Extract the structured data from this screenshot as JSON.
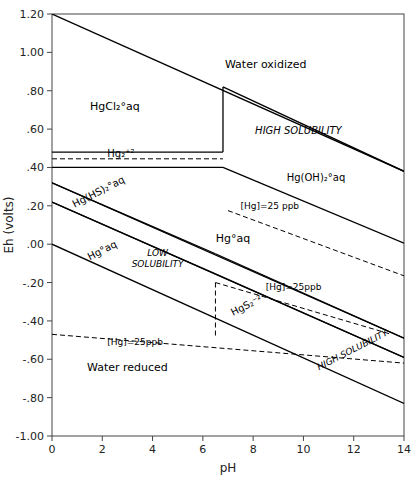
{
  "chart_data": {
    "type": "line",
    "xlabel": "pH",
    "ylabel": "Eh (volts)",
    "xlim": [
      0,
      14
    ],
    "ylim": [
      -1.0,
      1.2
    ],
    "xticks": [
      0,
      2,
      4,
      6,
      8,
      10,
      12,
      14
    ],
    "yticks": [
      {
        "value": -1.0,
        "label": "-1.00"
      },
      {
        "value": -0.8,
        "label": "-.80"
      },
      {
        "value": -0.6,
        "label": "-.60"
      },
      {
        "value": -0.4,
        "label": "-.40"
      },
      {
        "value": -0.2,
        "label": "-.20"
      },
      {
        "value": 0.0,
        "label": ".00"
      },
      {
        "value": 0.2,
        "label": ".20"
      },
      {
        "value": 0.4,
        "label": ".40"
      },
      {
        "value": 0.6,
        "label": ".60"
      },
      {
        "value": 0.8,
        "label": ".80"
      },
      {
        "value": 1.0,
        "label": "1.00"
      },
      {
        "value": 1.2,
        "label": "1.20"
      }
    ],
    "color": "#000000",
    "series": [
      {
        "x": [
          0,
          14
        ],
        "values": [
          1.2,
          0.38
        ],
        "line_style": "solid"
      },
      {
        "x": [
          0,
          14
        ],
        "values": [
          0.0,
          -0.83
        ],
        "line_style": "solid"
      },
      {
        "x": [
          0,
          6.8
        ],
        "values": [
          0.48,
          0.48
        ],
        "line_style": "solid"
      },
      {
        "x": [
          6.8,
          6.8
        ],
        "values": [
          0.48,
          0.82
        ],
        "line_style": "solid"
      },
      {
        "x": [
          6.8,
          14
        ],
        "values": [
          0.82,
          0.38
        ],
        "line_style": "solid"
      },
      {
        "x": [
          0,
          6.8
        ],
        "values": [
          0.445,
          0.445
        ],
        "line_style": "dashed"
      },
      {
        "x": [
          0,
          6.8
        ],
        "values": [
          0.4,
          0.4
        ],
        "line_style": "solid"
      },
      {
        "x": [
          6.8,
          14
        ],
        "values": [
          0.4,
          0.005
        ],
        "line_style": "solid"
      },
      {
        "x": [
          0,
          14
        ],
        "values": [
          0.32,
          -0.49
        ],
        "line_style": "solid"
      },
      {
        "x": [
          0,
          14
        ],
        "values": [
          0.22,
          -0.59
        ],
        "line_style": "solid"
      },
      {
        "x": [
          0,
          6.5
        ],
        "values": [
          0.32,
          -0.05
        ],
        "line_style": "solid"
      },
      {
        "x": [
          0,
          6.5
        ],
        "values": [
          0.22,
          -0.155
        ],
        "line_style": "solid"
      },
      {
        "x": [
          6.5,
          14
        ],
        "values": [
          -0.05,
          -0.49
        ],
        "line_style": "solid"
      },
      {
        "x": [
          6.5,
          14
        ],
        "values": [
          -0.155,
          -0.59
        ],
        "line_style": "solid"
      },
      {
        "x": [
          7.0,
          14
        ],
        "values": [
          0.175,
          -0.165
        ],
        "line_style": "dashed"
      },
      {
        "x": [
          6.5,
          13.5
        ],
        "values": [
          -0.2,
          -0.47
        ],
        "line_style": "dashed"
      },
      {
        "x": [
          6.5,
          6.5
        ],
        "values": [
          -0.2,
          -0.48
        ],
        "line_style": "dashed"
      },
      {
        "x": [
          0,
          14
        ],
        "values": [
          -0.47,
          -0.62
        ],
        "line_style": "dashed"
      }
    ],
    "annotations": [
      {
        "text": "Water oxidized",
        "x": 8.5,
        "y": 0.92
      },
      {
        "text": "Water reduced",
        "x": 3.0,
        "y": -0.66
      },
      {
        "text": "HgCl₂°aq",
        "x": 2.5,
        "y": 0.7
      },
      {
        "text": "HIGH SOLUBILITY",
        "x": 9.8,
        "y": 0.575
      },
      {
        "text": "Hg₂⁺²",
        "x": 2.2,
        "y": 0.452
      },
      {
        "text": "Hg(OH)₂°aq",
        "x": 10.5,
        "y": 0.33
      },
      {
        "text": "[Hg]=25 ppb",
        "x": 7.5,
        "y": 0.185
      },
      {
        "text": "Hg°aq",
        "x": 7.2,
        "y": 0.01
      },
      {
        "text": "Hg(HS)₂°aq",
        "x": 0.9,
        "y": 0.19
      },
      {
        "text": "Hg°aq",
        "x": 1.5,
        "y": -0.085
      },
      {
        "text": "LOW\nSOLUBILITY",
        "x": 4.2,
        "y": -0.12
      },
      {
        "text": "[Hg]=25ppb",
        "x": 8.5,
        "y": -0.24
      },
      {
        "text": "HgS₂⁻²",
        "x": 7.2,
        "y": -0.375
      },
      {
        "text": "[Hg]=25ppb",
        "x": 2.2,
        "y": -0.525
      },
      {
        "text": "HIGH SOLUBILITY",
        "x": 12.0,
        "y": -0.565
      }
    ]
  }
}
